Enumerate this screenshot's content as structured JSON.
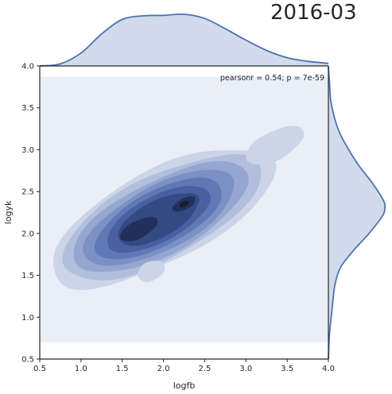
{
  "chart_data": {
    "type": "jointplot-kde",
    "title": "2016-03",
    "xlabel": "logfb",
    "ylabel": "logyk",
    "xlim": [
      0.5,
      4.0
    ],
    "ylim": [
      0.5,
      4.0
    ],
    "xticks": [
      "0.5",
      "1.0",
      "1.5",
      "2.0",
      "2.5",
      "3.0",
      "3.5",
      "4.0"
    ],
    "yticks": [
      "0.5",
      "1.0",
      "1.5",
      "2.0",
      "2.5",
      "3.0",
      "3.5",
      "4.0"
    ],
    "annotation": "pearsonr = 0.54; p = 7e-59",
    "kde_background_extent": {
      "x": [
        0.5,
        4.0
      ],
      "y": [
        0.7,
        3.87
      ]
    },
    "kde_center": {
      "x": 1.98,
      "y": 2.2
    },
    "kde_peaks": [
      {
        "x": 1.7,
        "y": 2.05
      },
      {
        "x": 2.25,
        "y": 2.35
      }
    ],
    "contour_levels": 8,
    "marginal_x": {
      "x": [
        0.5,
        0.75,
        1.0,
        1.25,
        1.5,
        1.75,
        2.0,
        2.25,
        2.5,
        2.75,
        3.0,
        3.25,
        3.5,
        3.75,
        4.0
      ],
      "density": [
        0.0,
        0.04,
        0.25,
        0.62,
        0.9,
        0.97,
        0.98,
        1.0,
        0.92,
        0.72,
        0.5,
        0.3,
        0.16,
        0.09,
        0.05
      ]
    },
    "marginal_y": {
      "y": [
        0.5,
        0.8,
        1.0,
        1.2,
        1.4,
        1.6,
        1.8,
        2.0,
        2.2,
        2.3,
        2.4,
        2.6,
        2.8,
        3.0,
        3.2,
        3.4,
        3.6,
        3.8,
        4.0
      ],
      "density": [
        0.0,
        0.02,
        0.05,
        0.08,
        0.12,
        0.22,
        0.45,
        0.72,
        0.95,
        1.0,
        0.97,
        0.78,
        0.55,
        0.36,
        0.2,
        0.1,
        0.04,
        0.02,
        0.0
      ]
    },
    "colors": {
      "kde_bg": "#eaeef6",
      "contours": [
        "#ccd5e7",
        "#b1bedc",
        "#95a7d0",
        "#7b91c4",
        "#6078b6",
        "#48609f",
        "#344a83",
        "#22305a",
        "#131c32"
      ],
      "line": "#4c72b0",
      "marginal_fill": "#d2dbeb",
      "axis": "#262626"
    },
    "grid": false
  }
}
